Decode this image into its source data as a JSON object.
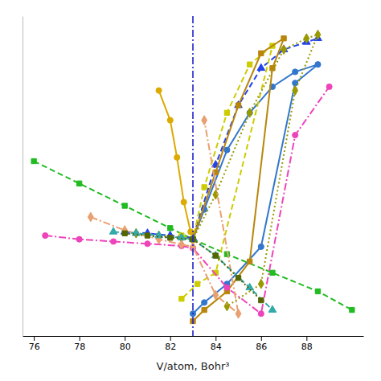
{
  "chart_data": {
    "type": "line",
    "x_label": "V/atom, Bohr³",
    "xlim": [
      75.5,
      90.5
    ],
    "ylim": [
      -0.8,
      3.5
    ],
    "xticks": [
      76,
      78,
      80,
      82,
      84,
      86,
      88
    ],
    "tick_labels": "x",
    "grid": false,
    "vlines": [
      {
        "x": 83.0,
        "color": "#2222cc",
        "line_style": "dashdot"
      }
    ],
    "series": [
      {
        "color": "#22bb22",
        "line_style": "dashed",
        "marker": "square",
        "x": [
          76.0,
          78.0,
          80.0,
          82.0,
          83.0,
          84.5,
          86.5,
          88.5,
          90.0
        ],
        "values": [
          1.55,
          1.25,
          0.95,
          0.65,
          0.5,
          0.3,
          0.05,
          -0.2,
          -0.45
        ]
      },
      {
        "color": "#3377cc",
        "line_style": "solid",
        "marker": "circle",
        "x": [
          83.0,
          83.5,
          84.5,
          85.5,
          86.5,
          87.5,
          88.5,
          87.5,
          86.0,
          84.5,
          83.5,
          83.0
        ],
        "values": [
          0.5,
          0.9,
          1.7,
          2.2,
          2.55,
          2.75,
          2.85,
          2.6,
          0.4,
          -0.1,
          -0.35,
          -0.5
        ]
      },
      {
        "color": "#2244ee",
        "line_style": "dashed",
        "marker": "triangle",
        "x": [
          80.0,
          81.0,
          82.0,
          83.0,
          84.0,
          85.0,
          86.0,
          87.0,
          88.0,
          88.5
        ],
        "values": [
          0.6,
          0.58,
          0.55,
          0.52,
          1.5,
          2.3,
          2.8,
          3.05,
          3.15,
          3.2
        ]
      },
      {
        "color": "#cccc00",
        "line_style": "dashed",
        "marker": "square",
        "x": [
          82.5,
          83.0,
          83.5,
          84.5,
          85.5,
          86.5,
          84.0,
          83.2,
          82.5
        ],
        "values": [
          0.55,
          0.5,
          1.2,
          2.2,
          2.85,
          3.1,
          0.05,
          -0.1,
          -0.3
        ]
      },
      {
        "color": "#b8860b",
        "line_style": "solid",
        "marker": "square",
        "x": [
          83.0,
          84.0,
          85.0,
          86.0,
          87.0,
          86.5,
          85.5,
          84.5,
          83.5,
          83.0
        ],
        "values": [
          0.5,
          1.4,
          2.3,
          3.0,
          3.2,
          2.8,
          0.2,
          -0.2,
          -0.45,
          -0.6
        ]
      },
      {
        "color": "#999900",
        "line_style": "dotted",
        "marker": "diamond",
        "x": [
          80.5,
          81.5,
          82.5,
          83.0,
          84.0,
          85.5,
          87.0,
          88.0,
          88.5,
          87.5,
          86.0,
          84.5
        ],
        "values": [
          0.58,
          0.55,
          0.52,
          0.5,
          1.1,
          2.2,
          3.05,
          3.2,
          3.25,
          2.5,
          -0.1,
          -0.4
        ]
      },
      {
        "color": "#ddaa00",
        "line_style": "solid",
        "marker": "circle",
        "x": [
          81.5,
          82.0,
          82.3,
          82.6,
          82.9,
          83.0
        ],
        "values": [
          2.5,
          2.1,
          1.6,
          1.0,
          0.6,
          0.5
        ]
      },
      {
        "color": "#ee44bb",
        "line_style": "dashdot",
        "marker": "circle",
        "x": [
          76.5,
          78.0,
          79.5,
          81.0,
          82.5,
          83.0,
          84.5,
          86.0,
          87.5,
          89.0
        ],
        "values": [
          0.55,
          0.5,
          0.47,
          0.44,
          0.41,
          0.38,
          -0.15,
          -0.5,
          1.9,
          2.55
        ]
      },
      {
        "color": "#e8a070",
        "line_style": "dashdot",
        "marker": "diamond",
        "x": [
          78.5,
          80.0,
          81.5,
          82.5,
          83.0,
          84.0,
          85.0,
          83.5
        ],
        "values": [
          0.8,
          0.62,
          0.5,
          0.43,
          0.4,
          -0.25,
          -0.5,
          2.1
        ]
      },
      {
        "color": "#33aaaa",
        "line_style": "dashed",
        "marker": "triangle",
        "x": [
          79.5,
          80.5,
          81.5,
          82.5,
          83.0,
          84.0,
          85.5,
          86.5
        ],
        "values": [
          0.6,
          0.58,
          0.55,
          0.52,
          0.5,
          0.28,
          -0.15,
          -0.45
        ]
      },
      {
        "color": "#556600",
        "line_style": "dotted",
        "marker": "square",
        "x": [
          80.0,
          81.0,
          82.0,
          83.0,
          84.0,
          85.0,
          86.0
        ],
        "values": [
          0.58,
          0.55,
          0.52,
          0.5,
          0.28,
          -0.02,
          -0.32
        ]
      }
    ]
  }
}
